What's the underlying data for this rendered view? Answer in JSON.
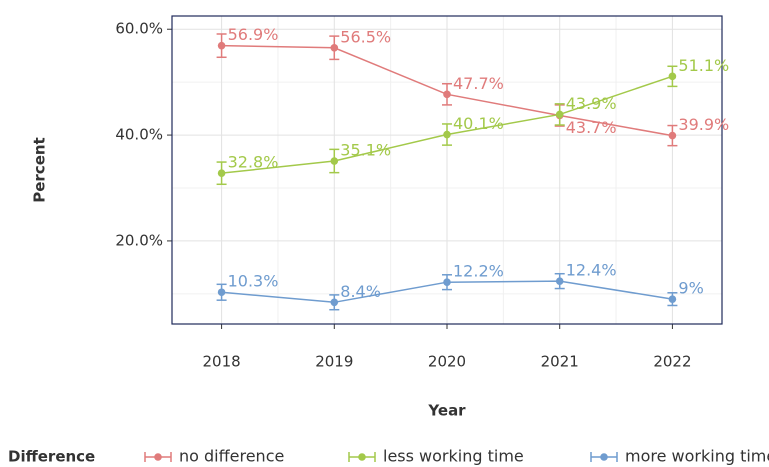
{
  "chart_data": {
    "type": "line",
    "x_label": "Year",
    "y_label": "Percent",
    "x": [
      2018,
      2019,
      2020,
      2021,
      2022
    ],
    "xlim": [
      2017.56,
      2022.44
    ],
    "xticks": [
      2018,
      2019,
      2020,
      2021,
      2022
    ],
    "ylim": [
      4.3,
      62.5
    ],
    "yticks": [
      {
        "value": 20,
        "label": "20.0%"
      },
      {
        "value": 40,
        "label": "40.0%"
      },
      {
        "value": 60,
        "label": "60.0%"
      }
    ],
    "y_minor_ticks": [
      10,
      30,
      50
    ],
    "grid": true,
    "legend_title": "Difference",
    "legend_position": "bottom",
    "series": [
      {
        "name": "no difference",
        "color": "#e07b7b",
        "values": [
          56.9,
          56.5,
          47.7,
          43.7,
          39.9
        ],
        "errors": [
          2.2,
          2.2,
          2.0,
          2.0,
          1.9
        ],
        "value_labels": [
          "56.9%",
          "56.5%",
          "47.7%",
          "43.7%",
          "39.9%"
        ]
      },
      {
        "name": "less working time",
        "color": "#a3c94a",
        "values": [
          32.8,
          35.1,
          40.1,
          43.9,
          51.1
        ],
        "errors": [
          2.1,
          2.2,
          2.0,
          2.0,
          1.9
        ],
        "value_labels": [
          "32.8%",
          "35.1%",
          "40.1%",
          "43.9%",
          "51.1%"
        ]
      },
      {
        "name": "more working time",
        "color": "#6f9ccf",
        "values": [
          10.3,
          8.4,
          12.2,
          12.4,
          9
        ],
        "errors": [
          1.5,
          1.4,
          1.4,
          1.4,
          1.2
        ],
        "value_labels": [
          "10.3%",
          "8.4%",
          "12.2%",
          "12.4%",
          "9%"
        ]
      }
    ]
  }
}
